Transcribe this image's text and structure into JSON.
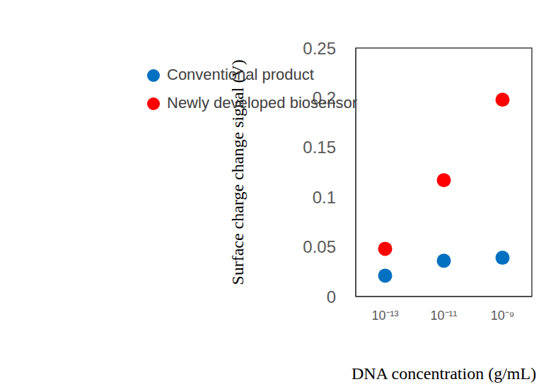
{
  "chart_data": {
    "type": "scatter",
    "x_label": "DNA concentration (g/mL)",
    "y_label": "Surface charge change signal (V)",
    "x": [
      1e-13,
      1e-11,
      1e-09
    ],
    "series": [
      {
        "name": "Newly developed biosensor",
        "color": "#ff0000",
        "values": [
          0.048,
          0.117,
          0.198
        ]
      },
      {
        "name": "Conventional product",
        "color": "#0070c0",
        "values": [
          0.021,
          0.036,
          0.039
        ]
      }
    ],
    "xlim": [
      1e-14,
      1e-08
    ],
    "xticks": [
      {
        "value": 1e-13,
        "label": "10⁻¹³"
      },
      {
        "value": 1e-11,
        "label": "10⁻¹¹"
      },
      {
        "value": 1e-09,
        "label": "10⁻⁹"
      }
    ],
    "ylim": [
      0,
      0.25
    ],
    "yticks": [
      0,
      0.05,
      0.1,
      0.15,
      0.2,
      0.25
    ],
    "log": "x",
    "grid": false,
    "legend": "upper left",
    "marker": "circle"
  }
}
